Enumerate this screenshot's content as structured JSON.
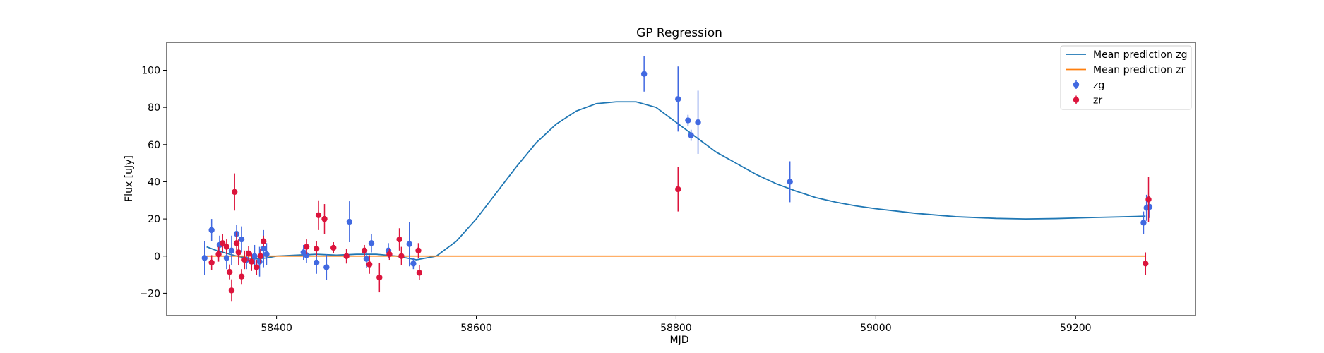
{
  "chart_data": {
    "type": "scatter",
    "title": "GP Regression",
    "xlabel": "MJD",
    "ylabel": "Flux [uJy]",
    "xlim": [
      58290,
      59320
    ],
    "ylim": [
      -32,
      115
    ],
    "xticks": [
      58400,
      58600,
      58800,
      59000,
      59200
    ],
    "yticks": [
      -20,
      0,
      20,
      40,
      60,
      80,
      100
    ],
    "grid": false,
    "legend_position": "top-right",
    "series": [
      {
        "name": "Mean prediction zg",
        "kind": "line",
        "color": "#1f77b4",
        "x": [
          58330,
          58340,
          58350,
          58360,
          58370,
          58380,
          58390,
          58400,
          58420,
          58440,
          58460,
          58480,
          58500,
          58520,
          58540,
          58560,
          58580,
          58600,
          58620,
          58640,
          58660,
          58680,
          58700,
          58720,
          58740,
          58760,
          58780,
          58800,
          58820,
          58840,
          58860,
          58880,
          58900,
          58920,
          58940,
          58960,
          58980,
          59000,
          59040,
          59080,
          59120,
          59150,
          59180,
          59220,
          59260,
          59270
        ],
        "y": [
          5,
          3,
          1.5,
          0,
          -1,
          -1.5,
          -1,
          0,
          0.5,
          1,
          0.5,
          1,
          1,
          0,
          -2,
          0,
          8,
          20,
          34,
          48,
          61,
          71,
          78,
          82,
          83,
          83,
          80,
          72,
          64,
          56,
          50,
          44,
          39,
          35,
          31.5,
          29,
          27,
          25.5,
          23,
          21.2,
          20.3,
          20,
          20.2,
          20.8,
          21.3,
          21.5
        ]
      },
      {
        "name": "Mean prediction zr",
        "kind": "line",
        "color": "#ff7f0e",
        "x": [
          58330,
          59270
        ],
        "y": [
          0,
          0
        ]
      },
      {
        "name": "zg",
        "kind": "errorbar",
        "color": "#4169e1",
        "points": [
          {
            "x": 58328,
            "y": -1,
            "err": 9
          },
          {
            "x": 58335,
            "y": 14,
            "err": 6
          },
          {
            "x": 58343,
            "y": 6,
            "err": 5
          },
          {
            "x": 58350,
            "y": -1,
            "err": 6
          },
          {
            "x": 58355,
            "y": 3,
            "err": 8
          },
          {
            "x": 58360,
            "y": 12,
            "err": 5
          },
          {
            "x": 58365,
            "y": 9,
            "err": 7
          },
          {
            "x": 58370,
            "y": -2,
            "err": 5
          },
          {
            "x": 58378,
            "y": 0,
            "err": 6
          },
          {
            "x": 58383,
            "y": -3,
            "err": 8
          },
          {
            "x": 58387,
            "y": 4,
            "err": 10
          },
          {
            "x": 58390,
            "y": 1,
            "err": 6
          },
          {
            "x": 58427,
            "y": 2,
            "err": 4
          },
          {
            "x": 58430,
            "y": 0.5,
            "err": 4
          },
          {
            "x": 58440,
            "y": -3.5,
            "err": 6
          },
          {
            "x": 58450,
            "y": -6,
            "err": 7
          },
          {
            "x": 58473,
            "y": 18.5,
            "err": 11
          },
          {
            "x": 58490,
            "y": -1.5,
            "err": 5
          },
          {
            "x": 58495,
            "y": 7,
            "err": 5
          },
          {
            "x": 58512,
            "y": 3,
            "err": 4
          },
          {
            "x": 58533,
            "y": 6.5,
            "err": 12
          },
          {
            "x": 58537,
            "y": -4,
            "err": 3
          },
          {
            "x": 58768,
            "y": 98,
            "err": 9.5
          },
          {
            "x": 58802,
            "y": 84.5,
            "err": 17.5
          },
          {
            "x": 58812,
            "y": 73,
            "err": 3
          },
          {
            "x": 58815,
            "y": 65,
            "err": 3
          },
          {
            "x": 58822,
            "y": 72,
            "err": 17
          },
          {
            "x": 58914,
            "y": 40,
            "err": 11
          },
          {
            "x": 59268,
            "y": 18,
            "err": 6
          },
          {
            "x": 59271,
            "y": 26,
            "err": 7
          },
          {
            "x": 59274,
            "y": 26.5,
            "err": 6
          }
        ]
      },
      {
        "name": "zr",
        "kind": "errorbar",
        "color": "#dc143c",
        "points": [
          {
            "x": 58335,
            "y": -3.5,
            "err": 4
          },
          {
            "x": 58342,
            "y": 1,
            "err": 4
          },
          {
            "x": 58346,
            "y": 7,
            "err": 5
          },
          {
            "x": 58350,
            "y": 5,
            "err": 4
          },
          {
            "x": 58353,
            "y": -8.5,
            "err": 4
          },
          {
            "x": 58355,
            "y": -18.5,
            "err": 6
          },
          {
            "x": 58358,
            "y": 34.5,
            "err": 10
          },
          {
            "x": 58360,
            "y": 7,
            "err": 6
          },
          {
            "x": 58362,
            "y": 2,
            "err": 7
          },
          {
            "x": 58365,
            "y": -11,
            "err": 4
          },
          {
            "x": 58368,
            "y": -2,
            "err": 5
          },
          {
            "x": 58372,
            "y": 1.5,
            "err": 4
          },
          {
            "x": 58375,
            "y": -3,
            "err": 5
          },
          {
            "x": 58380,
            "y": -6,
            "err": 4
          },
          {
            "x": 58384,
            "y": 0,
            "err": 4
          },
          {
            "x": 58387,
            "y": 8,
            "err": 3
          },
          {
            "x": 58430,
            "y": 5,
            "err": 4
          },
          {
            "x": 58440,
            "y": 4,
            "err": 4
          },
          {
            "x": 58442,
            "y": 22,
            "err": 8
          },
          {
            "x": 58448,
            "y": 20,
            "err": 8
          },
          {
            "x": 58457,
            "y": 4.5,
            "err": 3
          },
          {
            "x": 58470,
            "y": 0,
            "err": 4
          },
          {
            "x": 58488,
            "y": 3,
            "err": 3
          },
          {
            "x": 58493,
            "y": -4.5,
            "err": 5
          },
          {
            "x": 58503,
            "y": -11.5,
            "err": 8
          },
          {
            "x": 58513,
            "y": 1,
            "err": 3
          },
          {
            "x": 58523,
            "y": 9,
            "err": 6
          },
          {
            "x": 58525,
            "y": 0,
            "err": 5
          },
          {
            "x": 58542,
            "y": 3,
            "err": 4
          },
          {
            "x": 58543,
            "y": -9,
            "err": 4
          },
          {
            "x": 58802,
            "y": 36,
            "err": 12
          },
          {
            "x": 59270,
            "y": -4,
            "err": 6
          },
          {
            "x": 59273,
            "y": 30.5,
            "err": 12
          }
        ]
      }
    ]
  }
}
